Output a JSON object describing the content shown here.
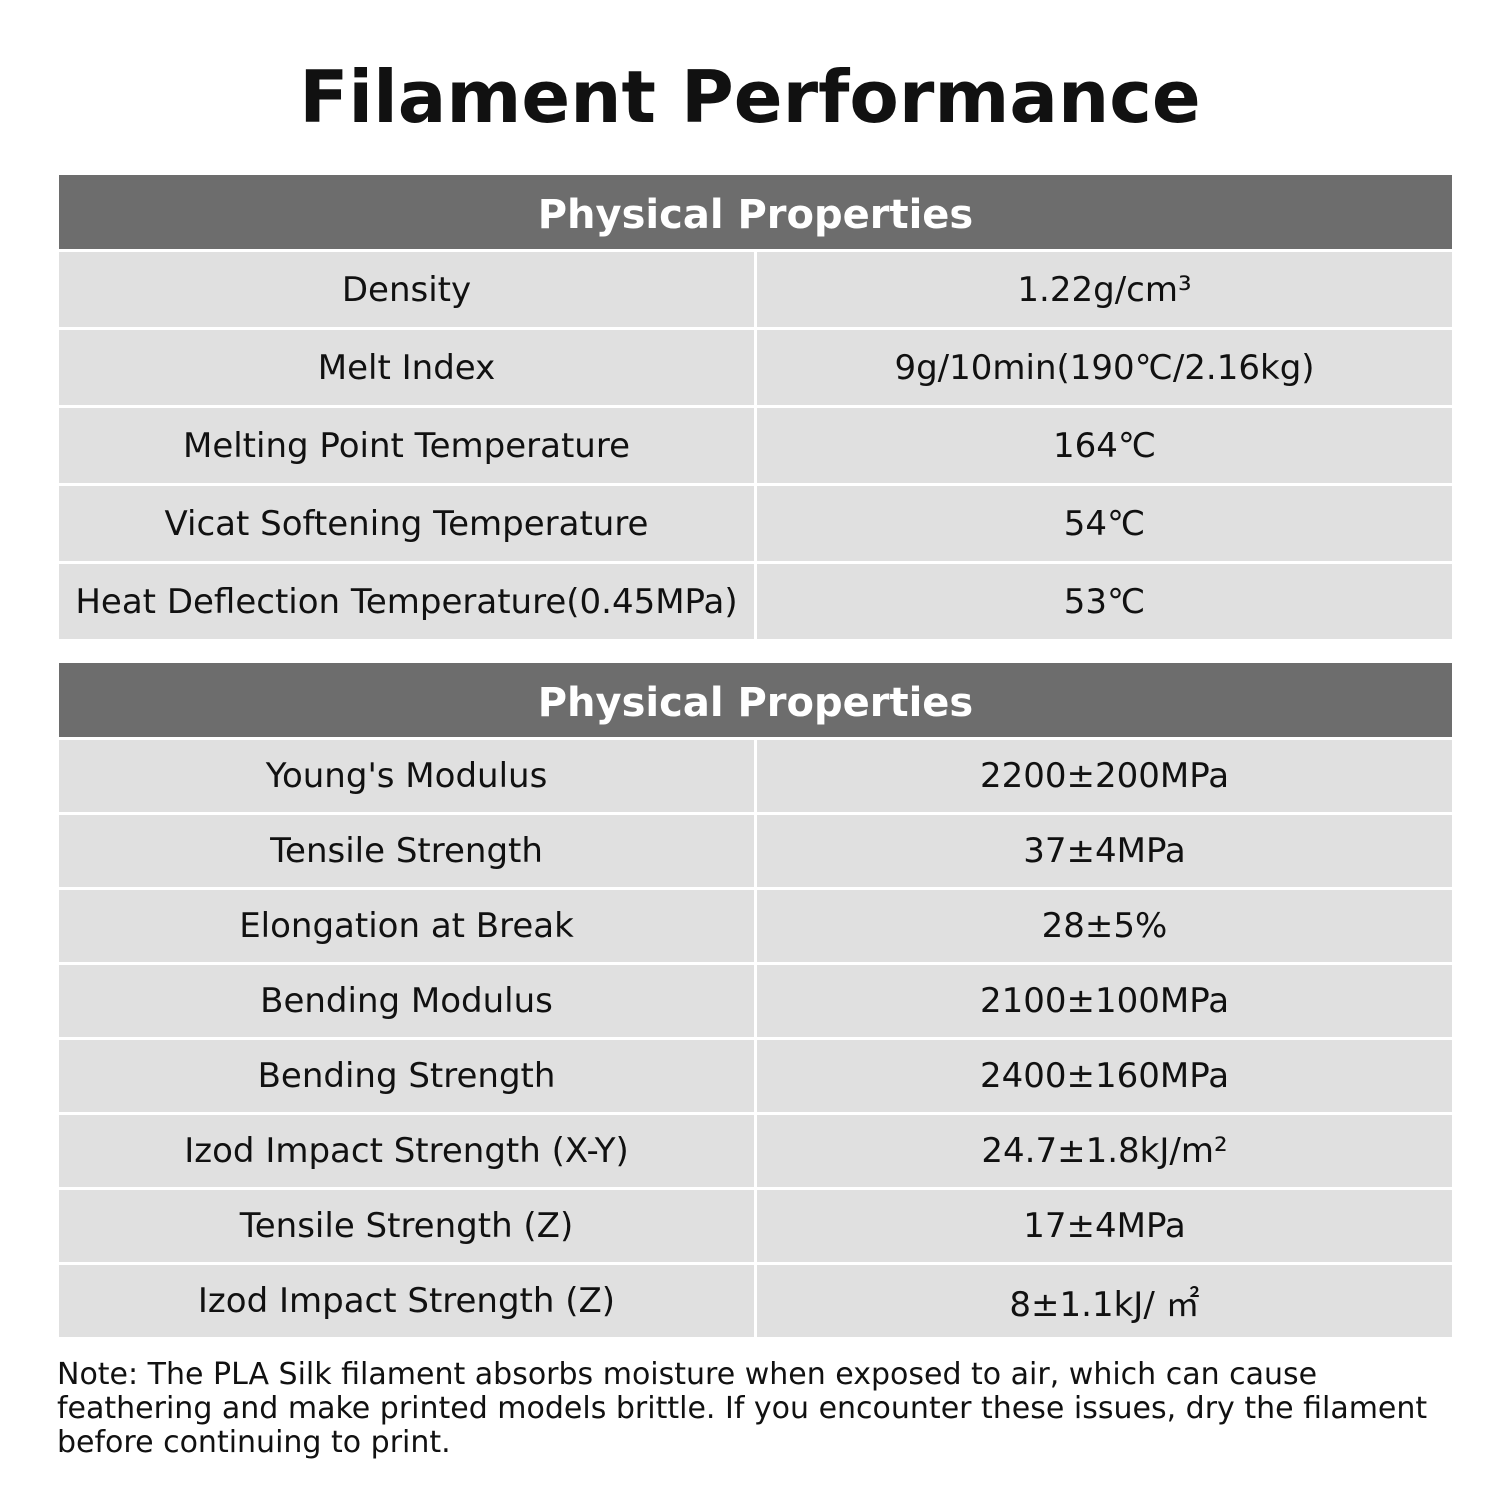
{
  "title": "Filament Performance",
  "tables": [
    {
      "header": "Physical Properties",
      "rows": [
        [
          "Density",
          "1.22g/cm³"
        ],
        [
          "Melt Index",
          "9g/10min(190℃/2.16kg)"
        ],
        [
          "Melting Point Temperature",
          "164℃"
        ],
        [
          "Vicat Softening Temperature",
          "54℃"
        ],
        [
          "Heat Deflection Temperature(0.45MPa)",
          "53℃"
        ]
      ]
    },
    {
      "header": "Physical Properties",
      "rows": [
        [
          "Young's Modulus",
          "2200±200MPa"
        ],
        [
          "Tensile Strength",
          "37±4MPa"
        ],
        [
          "Elongation at Break",
          "28±5%"
        ],
        [
          "Bending Modulus",
          "2100±100MPa"
        ],
        [
          "Bending Strength",
          "2400±160MPa"
        ],
        [
          "Izod Impact Strength (X-Y)",
          "24.7±1.8kJ/m²"
        ],
        [
          "Tensile Strength (Z)",
          "17±4MPa"
        ],
        [
          "Izod Impact Strength (Z)",
          "8±1.1kJ/ ㎡"
        ]
      ]
    }
  ],
  "note": "Note: The PLA Silk filament absorbs moisture when exposed to air, which can cause feathering and make printed models brittle. If you encounter these issues, dry the filament before continuing to print."
}
